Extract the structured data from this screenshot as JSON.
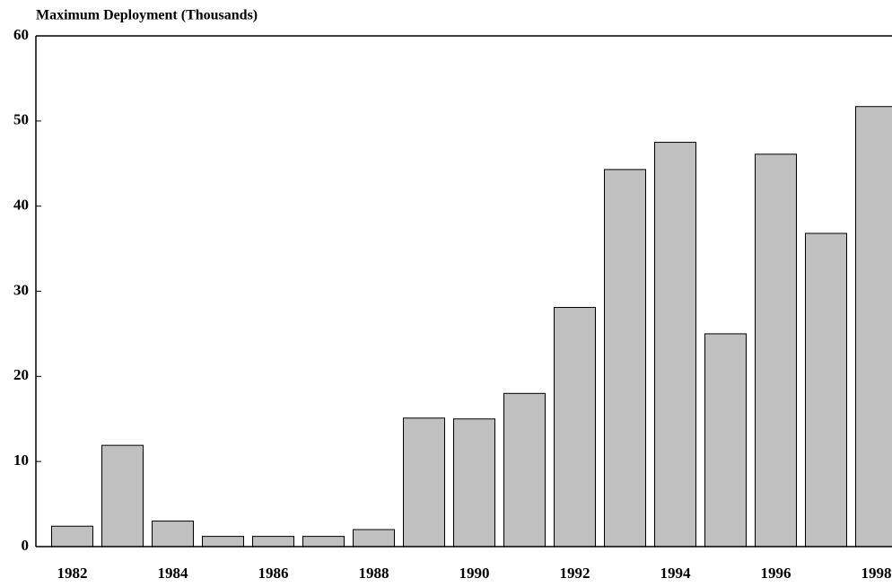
{
  "chart_data": {
    "type": "bar",
    "title": "Maximum Deployment (Thousands)",
    "categories": [
      "1982",
      null,
      "1984",
      null,
      "1986",
      null,
      "1988",
      null,
      "1990",
      null,
      "1992",
      null,
      "1994",
      null,
      "1996",
      null,
      "1998"
    ],
    "values": [
      2.4,
      11.9,
      3.0,
      1.2,
      1.2,
      1.2,
      2.0,
      15.1,
      15.0,
      18.0,
      28.1,
      44.3,
      47.5,
      25.0,
      46.1,
      36.8,
      51.7
    ],
    "color": "#c0c0c0",
    "ylim": [
      0,
      60
    ],
    "yticks": [
      0,
      10,
      20,
      30,
      40,
      50,
      60
    ],
    "grid": false
  }
}
